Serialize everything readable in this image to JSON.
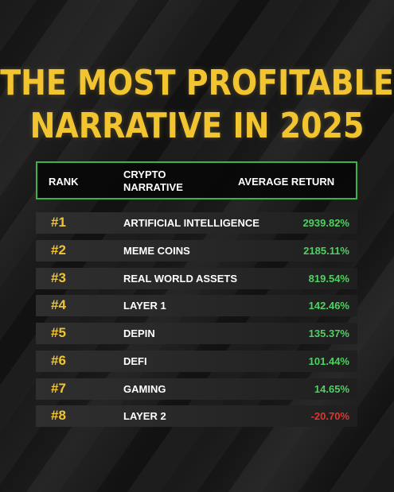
{
  "title": {
    "line1": "THE MOST PROFITABLE",
    "line2": "NARRATIVE IN 2025"
  },
  "table": {
    "headers": {
      "rank": "RANK",
      "narrative_line1": "CRYPTO",
      "narrative_line2": "NARRATIVE",
      "average_return": "AVERAGE RETURN"
    },
    "rows": [
      {
        "rank": "#1",
        "narrative": "ARTIFICIAL INTELLIGENCE",
        "return": "2939.82%",
        "sign": "positive"
      },
      {
        "rank": "#2",
        "narrative": "MEME COINS",
        "return": "2185.11%",
        "sign": "positive"
      },
      {
        "rank": "#3",
        "narrative": "REAL WORLD ASSETS",
        "return": "819.54%",
        "sign": "positive"
      },
      {
        "rank": "#4",
        "narrative": "LAYER 1",
        "return": "142.46%",
        "sign": "positive"
      },
      {
        "rank": "#5",
        "narrative": "DEPIN",
        "return": "135.37%",
        "sign": "positive"
      },
      {
        "rank": "#6",
        "narrative": "DEFI",
        "return": "101.44%",
        "sign": "positive"
      },
      {
        "rank": "#7",
        "narrative": "GAMING",
        "return": "14.65%",
        "sign": "positive"
      },
      {
        "rank": "#8",
        "narrative": "LAYER 2",
        "return": "-20.70%",
        "sign": "negative"
      }
    ]
  },
  "colors": {
    "title": "#f2c530",
    "header_border": "#3db14a",
    "positive": "#4fd162",
    "negative": "#e5322d"
  }
}
